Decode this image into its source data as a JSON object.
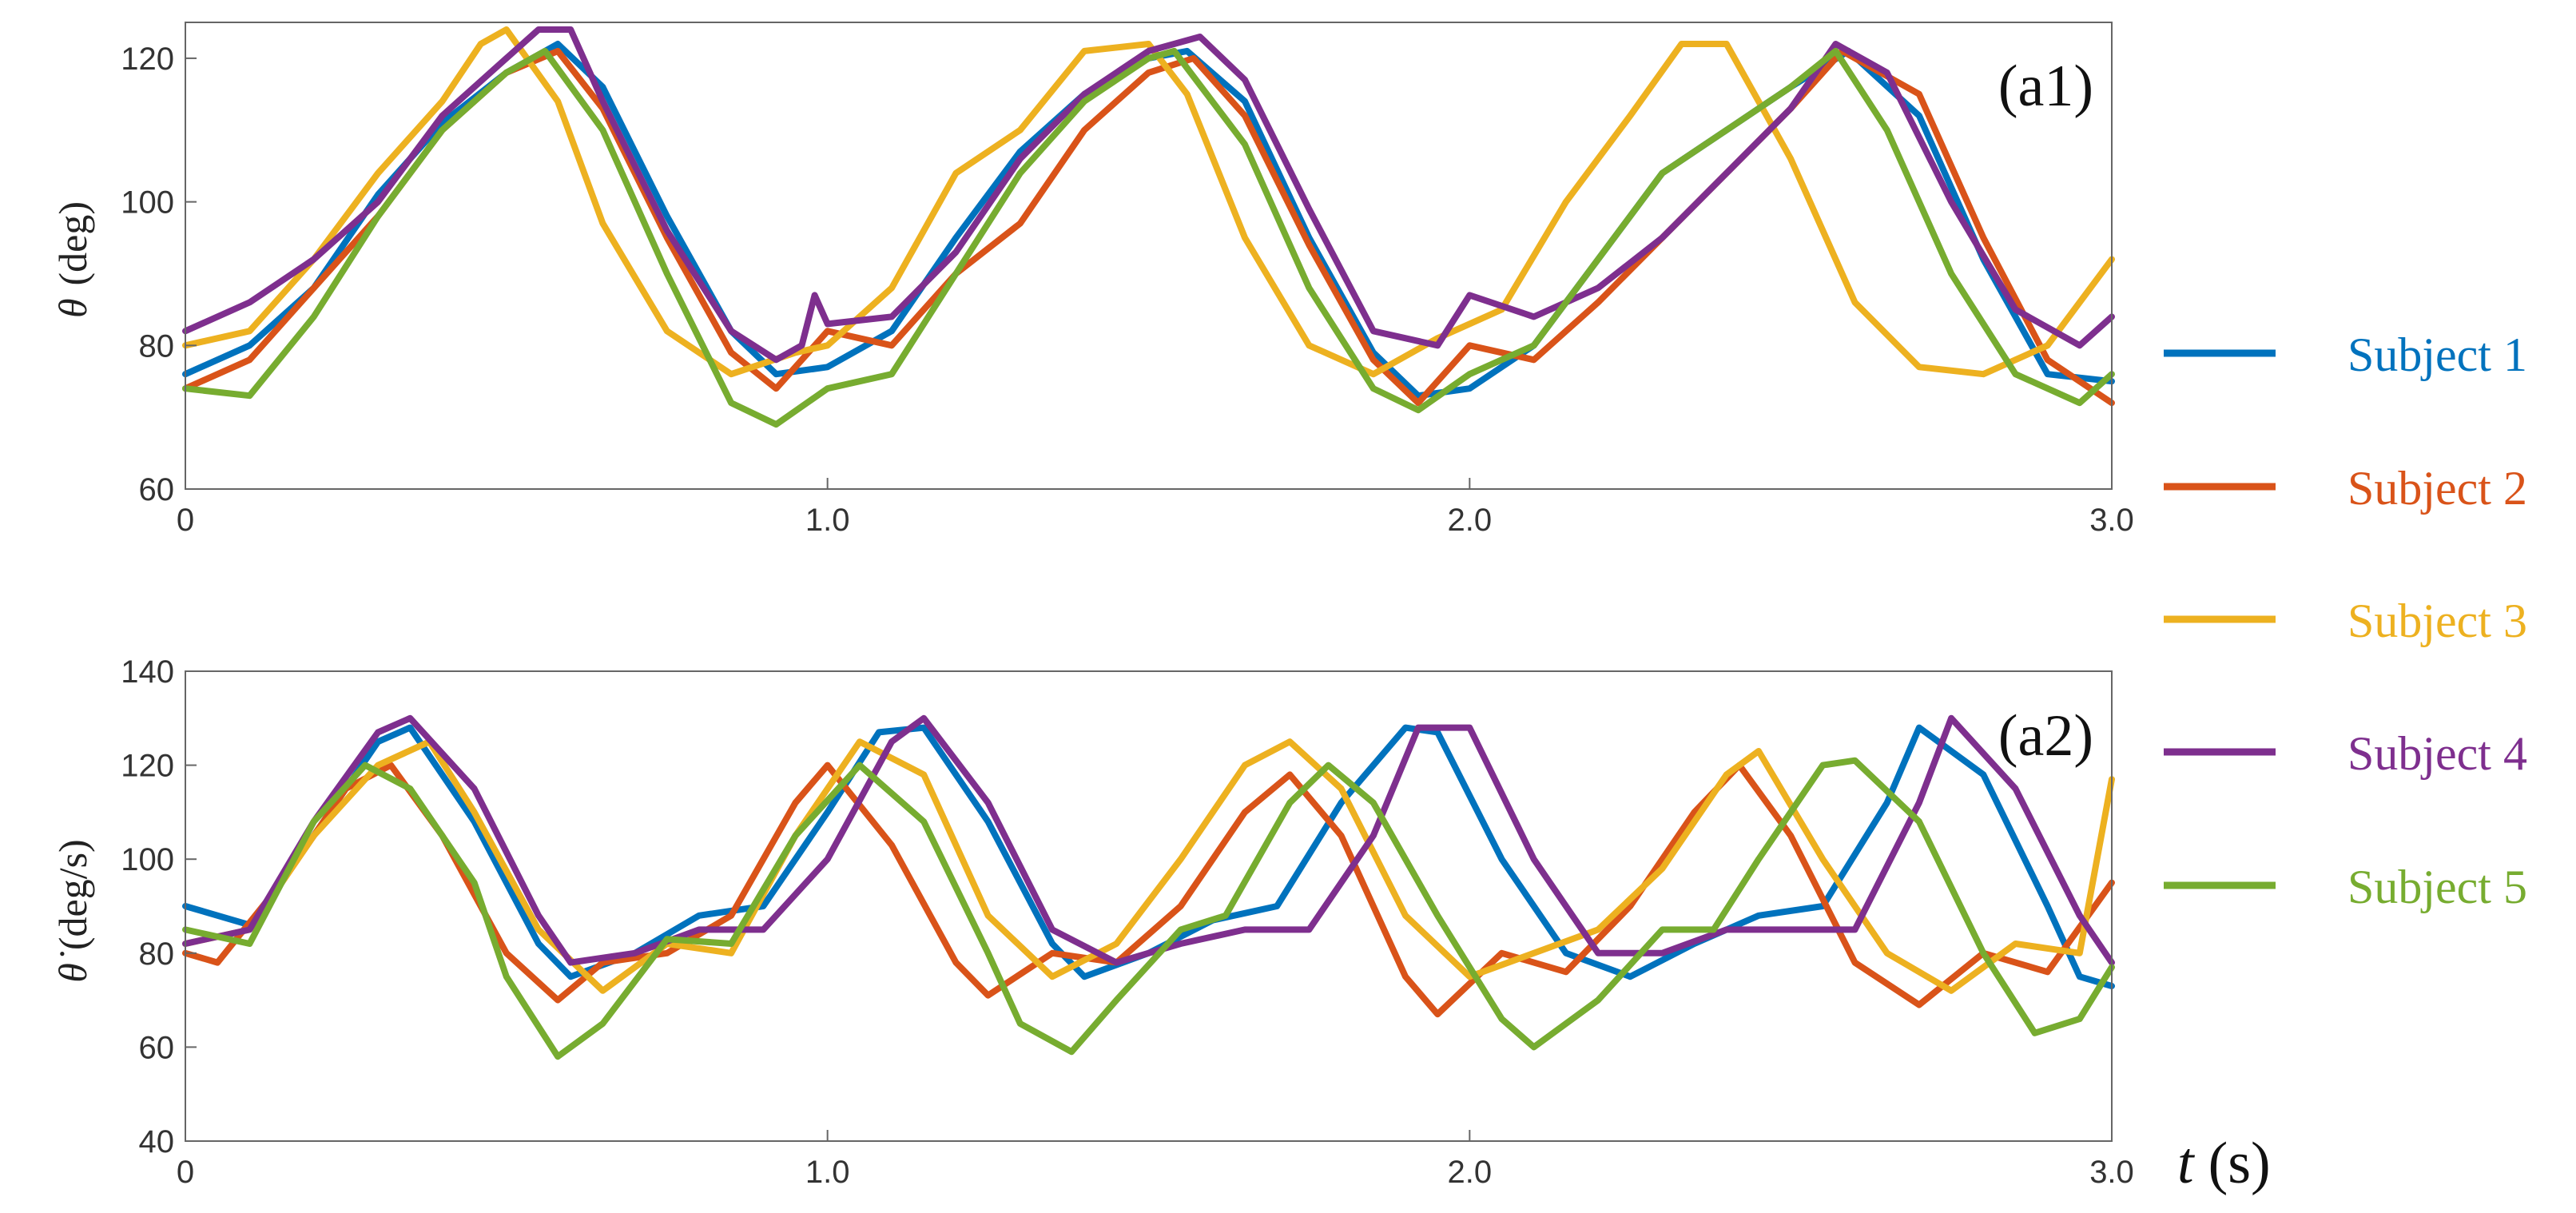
{
  "colors": [
    "#0072BD",
    "#D95319",
    "#EDB120",
    "#7E2F8E",
    "#77AC30"
  ],
  "legend": {
    "entries": [
      "Subject 1",
      "Subject 2",
      "Subject 3",
      "Subject 4",
      "Subject 5"
    ]
  },
  "x_axis_label": {
    "symbol": "t",
    "unit": "(s)"
  },
  "chart_data": [
    {
      "type": "line",
      "panel_label": "(a1)",
      "ylabel_symbol": "θ",
      "ylabel_unit": "(deg)",
      "xlim": [
        0,
        3.0
      ],
      "ylim": [
        60,
        125
      ],
      "xticks": [
        0,
        1.0,
        2.0,
        3.0
      ],
      "xtick_labels": [
        "0",
        "1.0",
        "2.0",
        "3.0"
      ],
      "yticks": [
        60,
        80,
        100,
        120
      ],
      "ytick_labels": [
        "60",
        "80",
        "100",
        "120"
      ],
      "grid": false,
      "series": [
        {
          "name": "Subject 1",
          "x": [
            0,
            0.1,
            0.2,
            0.3,
            0.4,
            0.5,
            0.58,
            0.65,
            0.75,
            0.85,
            0.92,
            1.0,
            1.1,
            1.2,
            1.3,
            1.4,
            1.5,
            1.56,
            1.65,
            1.75,
            1.85,
            1.92,
            2.0,
            2.1,
            2.2,
            2.3,
            2.4,
            2.5,
            2.59,
            2.7,
            2.8,
            2.9,
            3.0
          ],
          "y": [
            76,
            80,
            88,
            101,
            111,
            118,
            122,
            116,
            98,
            82,
            76,
            77,
            82,
            95,
            107,
            115,
            120,
            121,
            114,
            95,
            79,
            73,
            74,
            80,
            92,
            104,
            110,
            116,
            121,
            112,
            92,
            76,
            75
          ]
        },
        {
          "name": "Subject 2",
          "x": [
            0,
            0.1,
            0.2,
            0.3,
            0.4,
            0.5,
            0.58,
            0.65,
            0.75,
            0.85,
            0.92,
            1.0,
            1.1,
            1.2,
            1.3,
            1.4,
            1.5,
            1.57,
            1.65,
            1.75,
            1.85,
            1.92,
            2.0,
            2.1,
            2.2,
            2.3,
            2.4,
            2.5,
            2.58,
            2.7,
            2.8,
            2.9,
            3.0
          ],
          "y": [
            74,
            78,
            88,
            98,
            110,
            118,
            121,
            113,
            95,
            79,
            74,
            82,
            80,
            90,
            97,
            110,
            118,
            120,
            112,
            94,
            78,
            72,
            80,
            78,
            86,
            95,
            104,
            113,
            121,
            115,
            95,
            78,
            72
          ]
        },
        {
          "name": "Subject 3",
          "x": [
            0,
            0.1,
            0.2,
            0.3,
            0.4,
            0.46,
            0.5,
            0.58,
            0.65,
            0.75,
            0.85,
            0.95,
            1.0,
            1.1,
            1.2,
            1.3,
            1.4,
            1.5,
            1.56,
            1.65,
            1.75,
            1.85,
            1.95,
            2.05,
            2.15,
            2.25,
            2.33,
            2.4,
            2.5,
            2.6,
            2.7,
            2.8,
            2.9,
            3.0
          ],
          "y": [
            80,
            82,
            92,
            104,
            114,
            122,
            124,
            114,
            97,
            82,
            76,
            79,
            80,
            88,
            104,
            110,
            121,
            122,
            115,
            95,
            80,
            76,
            81,
            85,
            100,
            112,
            122,
            122,
            106,
            86,
            77,
            76,
            80,
            92
          ]
        },
        {
          "name": "Subject 4",
          "x": [
            0,
            0.1,
            0.2,
            0.3,
            0.4,
            0.5,
            0.55,
            0.6,
            0.65,
            0.75,
            0.85,
            0.92,
            0.96,
            0.98,
            1.0,
            1.1,
            1.2,
            1.3,
            1.4,
            1.5,
            1.58,
            1.65,
            1.75,
            1.85,
            1.95,
            2.0,
            2.1,
            2.2,
            2.3,
            2.4,
            2.5,
            2.57,
            2.65,
            2.75,
            2.85,
            2.95,
            3.0
          ],
          "y": [
            82,
            86,
            92,
            100,
            112,
            120,
            124,
            124,
            114,
            96,
            82,
            78,
            80,
            87,
            83,
            84,
            93,
            106,
            115,
            121,
            123,
            117,
            99,
            82,
            80,
            87,
            84,
            88,
            95,
            104,
            113,
            122,
            118,
            100,
            85,
            80,
            84
          ]
        },
        {
          "name": "Subject 5",
          "x": [
            0,
            0.1,
            0.2,
            0.3,
            0.4,
            0.5,
            0.56,
            0.65,
            0.75,
            0.85,
            0.92,
            1.0,
            1.1,
            1.2,
            1.3,
            1.4,
            1.5,
            1.54,
            1.65,
            1.75,
            1.85,
            1.92,
            2.0,
            2.1,
            2.2,
            2.3,
            2.4,
            2.5,
            2.57,
            2.65,
            2.75,
            2.85,
            2.95,
            3.0
          ],
          "y": [
            74,
            73,
            84,
            98,
            110,
            118,
            121,
            110,
            90,
            72,
            69,
            74,
            76,
            90,
            104,
            114,
            120,
            121,
            108,
            88,
            74,
            71,
            76,
            80,
            92,
            104,
            110,
            116,
            121,
            110,
            90,
            76,
            72,
            76
          ]
        }
      ]
    },
    {
      "type": "line",
      "panel_label": "(a2)",
      "ylabel_symbol": "θ̇",
      "ylabel_unit": "(deg/s)",
      "xlim": [
        0,
        3.0
      ],
      "ylim": [
        40,
        140
      ],
      "xticks": [
        0,
        1.0,
        2.0,
        3.0
      ],
      "xtick_labels": [
        "0",
        "1.0",
        "2.0",
        "3.0"
      ],
      "yticks": [
        40,
        60,
        80,
        100,
        120,
        140
      ],
      "ytick_labels": [
        "40",
        "60",
        "80",
        "100",
        "120",
        "140"
      ],
      "grid": false,
      "series": [
        {
          "name": "Subject 1",
          "x": [
            0,
            0.1,
            0.2,
            0.3,
            0.35,
            0.45,
            0.55,
            0.6,
            0.7,
            0.8,
            0.9,
            1.0,
            1.08,
            1.15,
            1.25,
            1.35,
            1.4,
            1.5,
            1.6,
            1.7,
            1.8,
            1.9,
            1.95,
            2.05,
            2.15,
            2.25,
            2.35,
            2.45,
            2.55,
            2.65,
            2.7,
            2.8,
            2.9,
            2.95,
            3.0
          ],
          "y": [
            90,
            86,
            105,
            125,
            128,
            108,
            82,
            75,
            80,
            88,
            90,
            110,
            127,
            128,
            108,
            82,
            75,
            80,
            87,
            90,
            112,
            128,
            127,
            100,
            80,
            75,
            82,
            88,
            90,
            112,
            128,
            118,
            90,
            75,
            73
          ]
        },
        {
          "name": "Subject 2",
          "x": [
            0,
            0.05,
            0.15,
            0.25,
            0.32,
            0.4,
            0.5,
            0.58,
            0.65,
            0.75,
            0.85,
            0.95,
            1.0,
            1.1,
            1.2,
            1.25,
            1.35,
            1.45,
            1.55,
            1.65,
            1.72,
            1.8,
            1.9,
            1.95,
            2.05,
            2.15,
            2.25,
            2.35,
            2.42,
            2.5,
            2.6,
            2.7,
            2.8,
            2.9,
            3.0
          ],
          "y": [
            80,
            78,
            95,
            115,
            120,
            105,
            80,
            70,
            78,
            80,
            88,
            112,
            120,
            103,
            78,
            71,
            80,
            78,
            90,
            110,
            118,
            105,
            75,
            67,
            80,
            76,
            90,
            110,
            120,
            105,
            78,
            69,
            80,
            76,
            95
          ]
        },
        {
          "name": "Subject 3",
          "x": [
            0,
            0.1,
            0.2,
            0.3,
            0.38,
            0.45,
            0.55,
            0.65,
            0.75,
            0.85,
            0.95,
            1.05,
            1.15,
            1.25,
            1.35,
            1.45,
            1.55,
            1.65,
            1.72,
            1.8,
            1.9,
            2.0,
            2.1,
            2.2,
            2.3,
            2.4,
            2.45,
            2.55,
            2.65,
            2.75,
            2.85,
            2.95,
            3.0
          ],
          "y": [
            82,
            85,
            105,
            120,
            125,
            110,
            85,
            72,
            82,
            80,
            105,
            125,
            118,
            88,
            75,
            82,
            100,
            120,
            125,
            115,
            88,
            75,
            80,
            85,
            98,
            118,
            123,
            100,
            80,
            72,
            82,
            80,
            117
          ]
        },
        {
          "name": "Subject 4",
          "x": [
            0,
            0.1,
            0.2,
            0.3,
            0.35,
            0.45,
            0.55,
            0.6,
            0.7,
            0.8,
            0.9,
            1.0,
            1.1,
            1.15,
            1.25,
            1.35,
            1.45,
            1.55,
            1.65,
            1.75,
            1.85,
            1.92,
            2.0,
            2.1,
            2.2,
            2.3,
            2.4,
            2.5,
            2.6,
            2.7,
            2.75,
            2.85,
            2.95,
            3.0
          ],
          "y": [
            82,
            85,
            108,
            127,
            130,
            115,
            88,
            78,
            80,
            85,
            85,
            100,
            125,
            130,
            112,
            85,
            78,
            82,
            85,
            85,
            105,
            128,
            128,
            100,
            80,
            80,
            85,
            85,
            85,
            112,
            130,
            115,
            88,
            78
          ]
        },
        {
          "name": "Subject 5",
          "x": [
            0,
            0.1,
            0.2,
            0.28,
            0.35,
            0.45,
            0.5,
            0.58,
            0.65,
            0.75,
            0.85,
            0.95,
            1.05,
            1.15,
            1.25,
            1.3,
            1.38,
            1.45,
            1.55,
            1.62,
            1.72,
            1.78,
            1.85,
            1.95,
            2.05,
            2.1,
            2.2,
            2.3,
            2.38,
            2.45,
            2.55,
            2.6,
            2.7,
            2.8,
            2.88,
            2.95,
            3.0
          ],
          "y": [
            85,
            82,
            108,
            120,
            115,
            95,
            75,
            58,
            65,
            83,
            82,
            105,
            120,
            108,
            80,
            65,
            59,
            70,
            85,
            88,
            112,
            120,
            112,
            88,
            66,
            60,
            70,
            85,
            85,
            100,
            120,
            121,
            108,
            80,
            63,
            66,
            77
          ]
        }
      ]
    }
  ]
}
